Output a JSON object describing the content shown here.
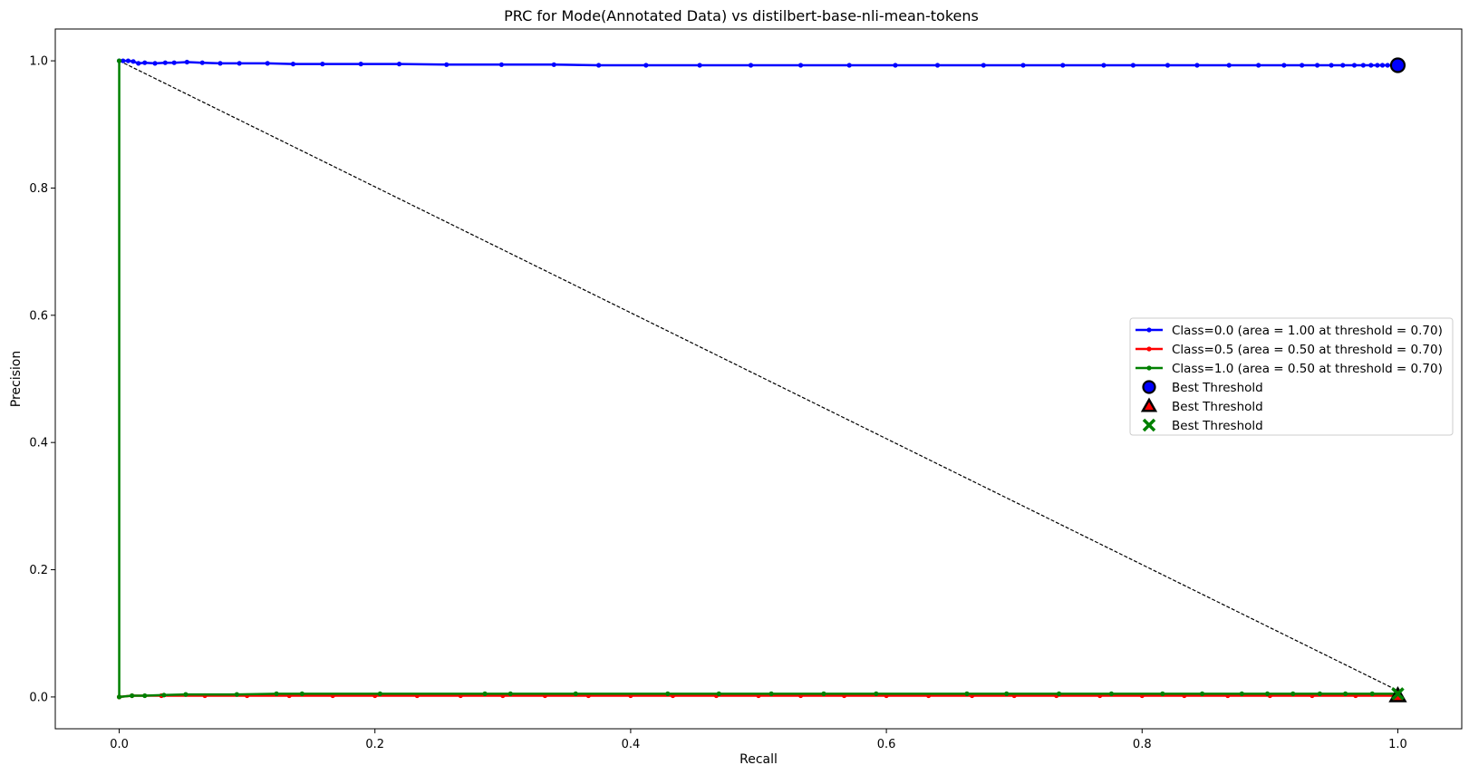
{
  "chart_data": {
    "type": "line",
    "title": "PRC for Mode(Annotated Data) vs distilbert-base-nli-mean-tokens",
    "xlabel": "Recall",
    "ylabel": "Precision",
    "xlim": [
      -0.05,
      1.05
    ],
    "ylim": [
      -0.05,
      1.05
    ],
    "xticks": [
      0.0,
      0.2,
      0.4,
      0.6,
      0.8,
      1.0
    ],
    "yticks": [
      0.0,
      0.2,
      0.4,
      0.6,
      0.8,
      1.0
    ],
    "xtick_labels": [
      "0.0",
      "0.2",
      "0.4",
      "0.6",
      "0.8",
      "1.0"
    ],
    "ytick_labels": [
      "0.0",
      "0.2",
      "0.4",
      "0.6",
      "0.8",
      "1.0"
    ],
    "grid": false,
    "legend_position": "center-right",
    "reference_line": {
      "x": [
        0,
        1
      ],
      "y": [
        1,
        0.01
      ],
      "color": "#000000",
      "style": "dashed"
    },
    "series": [
      {
        "name": "Class=0.0 (area = 1.00 at threshold = 0.70)",
        "color": "#0000ff",
        "x": [
          0.0,
          0.003,
          0.007,
          0.011,
          0.015,
          0.02,
          0.028,
          0.036,
          0.043,
          0.053,
          0.065,
          0.079,
          0.094,
          0.116,
          0.136,
          0.159,
          0.189,
          0.219,
          0.256,
          0.299,
          0.34,
          0.375,
          0.412,
          0.454,
          0.494,
          0.533,
          0.571,
          0.607,
          0.64,
          0.676,
          0.707,
          0.738,
          0.77,
          0.793,
          0.82,
          0.843,
          0.868,
          0.891,
          0.911,
          0.925,
          0.937,
          0.948,
          0.957,
          0.966,
          0.973,
          0.979,
          0.984,
          0.988,
          0.992,
          0.996,
          1.0
        ],
        "y": [
          1.0,
          1.0,
          1.0,
          0.999,
          0.996,
          0.997,
          0.996,
          0.997,
          0.997,
          0.998,
          0.997,
          0.996,
          0.996,
          0.996,
          0.995,
          0.995,
          0.995,
          0.995,
          0.994,
          0.994,
          0.994,
          0.993,
          0.993,
          0.993,
          0.993,
          0.993,
          0.993,
          0.993,
          0.993,
          0.993,
          0.993,
          0.993,
          0.993,
          0.993,
          0.993,
          0.993,
          0.993,
          0.993,
          0.993,
          0.993,
          0.993,
          0.993,
          0.993,
          0.993,
          0.993,
          0.993,
          0.993,
          0.993,
          0.993,
          0.993,
          0.993
        ]
      },
      {
        "name": "Class=0.5 (area = 0.50 at threshold = 0.70)",
        "color": "#ff0000",
        "x": [
          0.0,
          0.01,
          0.033,
          0.067,
          0.1,
          0.133,
          0.167,
          0.2,
          0.233,
          0.267,
          0.3,
          0.333,
          0.367,
          0.4,
          0.433,
          0.467,
          0.5,
          0.533,
          0.567,
          0.6,
          0.633,
          0.667,
          0.7,
          0.733,
          0.767,
          0.8,
          0.833,
          0.867,
          0.9,
          0.933,
          0.967,
          1.0
        ],
        "y": [
          0.0,
          0.002,
          0.002,
          0.002,
          0.002,
          0.002,
          0.002,
          0.002,
          0.002,
          0.002,
          0.002,
          0.002,
          0.002,
          0.002,
          0.002,
          0.002,
          0.002,
          0.002,
          0.002,
          0.002,
          0.002,
          0.002,
          0.002,
          0.002,
          0.002,
          0.002,
          0.002,
          0.002,
          0.002,
          0.002,
          0.002,
          0.002
        ]
      },
      {
        "name": "Class=1.0 (area = 0.50 at threshold = 0.70)",
        "color": "#008000",
        "x": [
          0.0,
          0.0,
          0.01,
          0.02,
          0.035,
          0.052,
          0.092,
          0.123,
          0.143,
          0.204,
          0.286,
          0.306,
          0.357,
          0.429,
          0.469,
          0.51,
          0.551,
          0.592,
          0.663,
          0.694,
          0.735,
          0.776,
          0.816,
          0.847,
          0.878,
          0.898,
          0.918,
          0.939,
          0.959,
          0.98,
          1.0
        ],
        "y": [
          1.0,
          0.0,
          0.002,
          0.002,
          0.003,
          0.004,
          0.004,
          0.005,
          0.005,
          0.005,
          0.005,
          0.005,
          0.005,
          0.005,
          0.005,
          0.005,
          0.005,
          0.005,
          0.005,
          0.005,
          0.005,
          0.005,
          0.005,
          0.005,
          0.005,
          0.005,
          0.005,
          0.005,
          0.005,
          0.005,
          0.005
        ]
      }
    ],
    "best_thresholds": [
      {
        "name": "Best Threshold",
        "x": 1.0,
        "y": 0.993,
        "marker": "circle",
        "color": "#0000ff"
      },
      {
        "name": "Best Threshold",
        "x": 1.0,
        "y": 0.002,
        "marker": "triangle",
        "color": "#ff0000"
      },
      {
        "name": "Best Threshold",
        "x": 1.0,
        "y": 0.005,
        "marker": "x",
        "color": "#008000"
      }
    ]
  }
}
